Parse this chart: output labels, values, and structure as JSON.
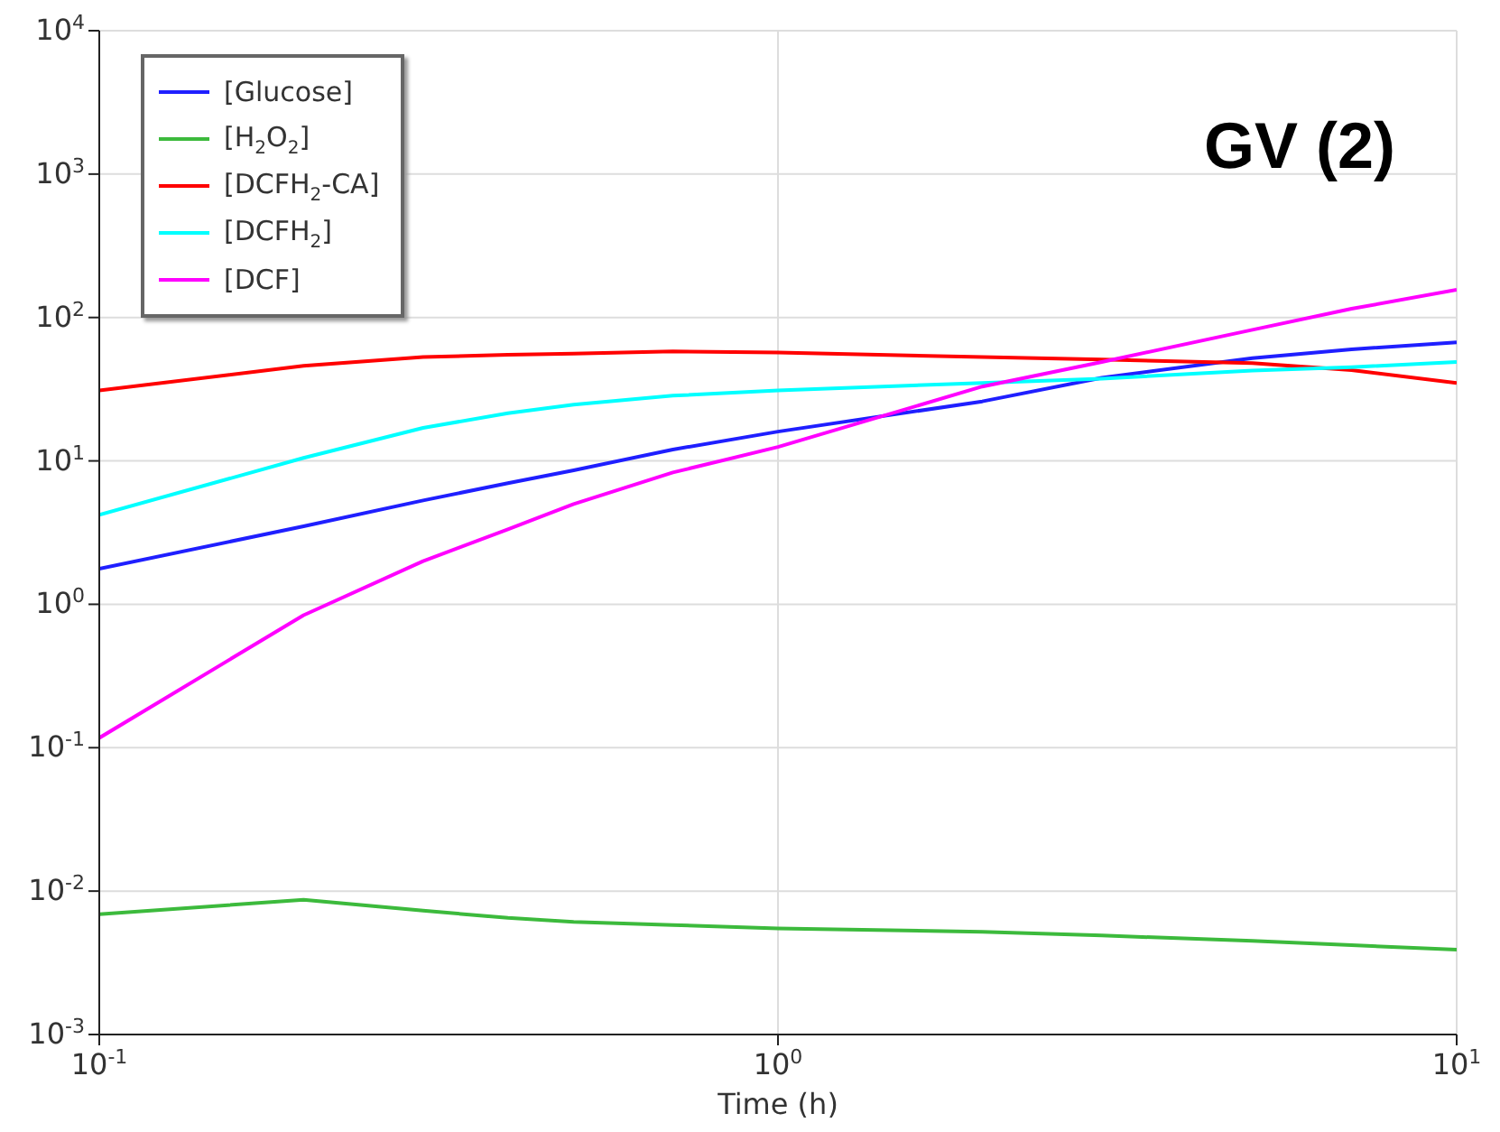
{
  "chart_data": {
    "type": "line",
    "title": "GV (2)",
    "xlabel": "Time (h)",
    "log": "xy",
    "grid": true,
    "legend": "top left",
    "marker": "none",
    "line_style": "solid",
    "x": [
      0.1,
      0.2,
      0.3,
      0.4,
      0.5,
      0.7,
      1,
      2,
      3,
      5,
      7,
      10
    ],
    "xlim": [
      0.1,
      10
    ],
    "xticks": [
      {
        "value": 0.1,
        "label": "10$^{-1}$"
      },
      {
        "value": 1,
        "label": "10$^{0}$"
      },
      {
        "value": 10,
        "label": "10$^{1}$"
      }
    ],
    "ylim": [
      0.001,
      10000
    ],
    "yticks": [
      {
        "value": 0.001,
        "label": "10$^{-3}$"
      },
      {
        "value": 0.01,
        "label": "10$^{-2}$"
      },
      {
        "value": 0.1,
        "label": "10$^{-1}$"
      },
      {
        "value": 1,
        "label": "10$^{0}$"
      },
      {
        "value": 10,
        "label": "10$^{1}$"
      },
      {
        "value": 100,
        "label": "10$^{2}$"
      },
      {
        "value": 1000,
        "label": "10$^{3}$"
      },
      {
        "value": 10000,
        "label": "10$^{4}$"
      }
    ],
    "series": [
      {
        "name": "[Glucose]",
        "color": "#1f1fff",
        "values": [
          1.77,
          3.5,
          5.3,
          7.0,
          8.6,
          12,
          16,
          26,
          38,
          52,
          60,
          67
        ]
      },
      {
        "name": "[H$_{2}$O$_{2}$]",
        "color": "#3cba3c",
        "values": [
          0.0069,
          0.0087,
          0.0073,
          0.0065,
          0.0061,
          0.0058,
          0.0055,
          0.0052,
          0.0049,
          0.0045,
          0.0042,
          0.0039
        ]
      },
      {
        "name": "[DCFH$_{2}$-CA]",
        "color": "#ff0000",
        "values": [
          31,
          46,
          53,
          55,
          56,
          58,
          57,
          53,
          51,
          48,
          43,
          35
        ]
      },
      {
        "name": "[DCFH$_{2}$]",
        "color": "#00ffff",
        "values": [
          4.2,
          10.5,
          17,
          21.5,
          24.7,
          28.5,
          31,
          35,
          37.5,
          42.6,
          45,
          49
        ]
      },
      {
        "name": "[DCF]",
        "color": "#ff00ff",
        "values": [
          0.117,
          0.84,
          2.0,
          3.33,
          5.0,
          8.3,
          12.5,
          33,
          49,
          82,
          115,
          156
        ]
      }
    ]
  }
}
